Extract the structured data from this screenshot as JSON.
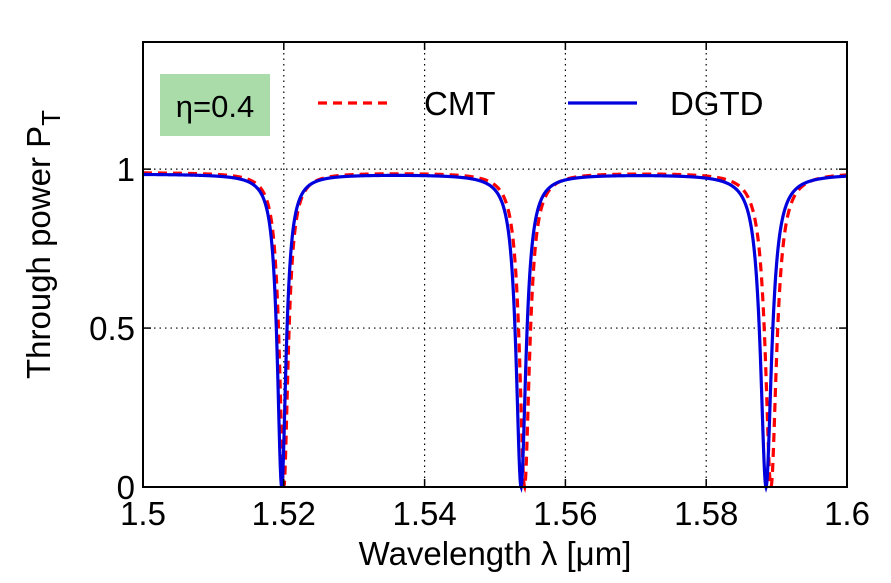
{
  "chart_data": {
    "type": "line",
    "xlabel": "Wavelength λ [μm]",
    "ylabel": "Through power P",
    "ylabel_subscript": "T",
    "xlim": [
      1.5,
      1.6
    ],
    "ylim": [
      0,
      1.4
    ],
    "x_ticks": [
      1.5,
      1.52,
      1.54,
      1.56,
      1.58,
      1.6
    ],
    "x_tick_labels": [
      "1.5",
      "1.52",
      "1.54",
      "1.56",
      "1.58",
      "1.6"
    ],
    "y_ticks": [
      0,
      0.5,
      1
    ],
    "y_tick_labels": [
      "0",
      "0.5",
      "1"
    ],
    "grid": "dotted, major ticks",
    "legend_placement": "top",
    "annotation": {
      "text": "η=0.4",
      "background": "#a9dca9"
    },
    "series": [
      {
        "name": "CMT",
        "color": "#ff0000",
        "style": "dashed",
        "baseline": 0.99,
        "resonances": [
          {
            "center": 1.52,
            "halfwidth": 0.00075
          },
          {
            "center": 1.5542,
            "halfwidth": 0.00085
          },
          {
            "center": 1.5892,
            "halfwidth": 0.00095
          }
        ]
      },
      {
        "name": "DGTD",
        "color": "#0000dd",
        "style": "solid",
        "baseline": 0.985,
        "resonances": [
          {
            "center": 1.5197,
            "halfwidth": 0.00075
          },
          {
            "center": 1.5537,
            "halfwidth": 0.00085
          },
          {
            "center": 1.5885,
            "halfwidth": 0.00095
          }
        ]
      }
    ]
  }
}
